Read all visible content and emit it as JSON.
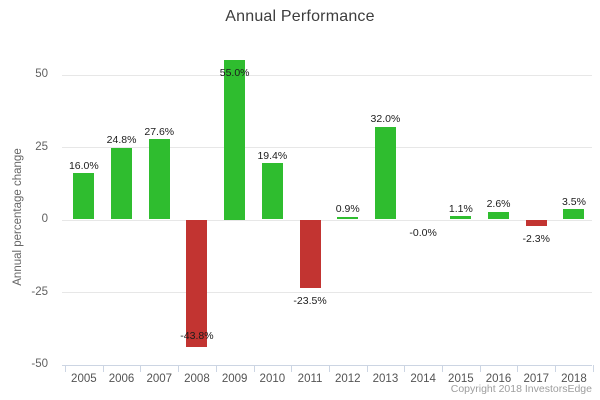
{
  "title": "Annual Performance",
  "y_axis_title": "Annual percentage change",
  "copyright": "Copyright 2018 InvestorsEdge",
  "colors": {
    "positive_bar": "#2fbd2f",
    "negative_bar": "#c23431",
    "gridline": "#e7e7e7",
    "axis": "#ccd5e3",
    "title_text": "#3d3d3d",
    "tick_text": "#606060",
    "value_label_text": "#1c1c1c",
    "copyright_text": "#9e9e9e"
  },
  "chart_data": {
    "type": "bar",
    "title": "Annual Performance",
    "xlabel": "",
    "ylabel": "Annual percentage change",
    "categories": [
      "2005",
      "2006",
      "2007",
      "2008",
      "2009",
      "2010",
      "2011",
      "2012",
      "2013",
      "2014",
      "2015",
      "2016",
      "2017",
      "2018"
    ],
    "values": [
      16.0,
      24.8,
      27.6,
      -43.8,
      55.0,
      19.4,
      -23.5,
      0.9,
      32.0,
      -0.0,
      1.1,
      2.6,
      -2.3,
      3.5
    ],
    "value_labels": [
      "16.0%",
      "24.8%",
      "27.6%",
      "-43.8%",
      "55.0%",
      "19.4%",
      "-23.5%",
      "0.9%",
      "32.0%",
      "-0.0%",
      "1.1%",
      "2.6%",
      "-2.3%",
      "3.5%"
    ],
    "ylim": [
      -50,
      50
    ],
    "yticks": [
      50,
      25,
      0,
      -25,
      -50
    ],
    "grid": true,
    "legend": "none"
  }
}
